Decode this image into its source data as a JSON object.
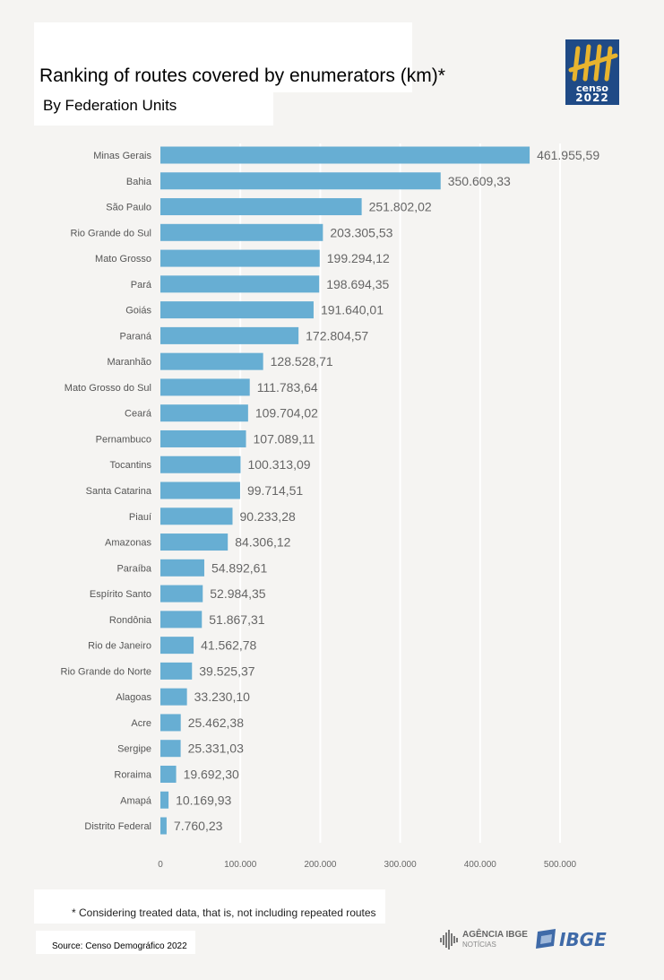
{
  "header": {
    "title": "Ranking of routes covered by enumerators (km)*",
    "subtitle": "By Federation Units"
  },
  "logo": {
    "word_top": "censo",
    "word_bottom": "2022",
    "bg_color": "#1f4a86",
    "mark_color": "#e8b42e"
  },
  "chart_data": {
    "type": "bar",
    "orientation": "horizontal",
    "categories": [
      "Minas Gerais",
      "Bahia",
      "São Paulo",
      "Rio Grande do Sul",
      "Mato Grosso",
      "Pará",
      "Goiás",
      "Paraná",
      "Maranhão",
      "Mato Grosso do Sul",
      "Ceará",
      "Pernambuco",
      "Tocantins",
      "Santa Catarina",
      "Piauí",
      "Amazonas",
      "Paraíba",
      "Espírito Santo",
      "Rondônia",
      "Rio de Janeiro",
      "Rio Grande do Norte",
      "Alagoas",
      "Acre",
      "Sergipe",
      "Roraima",
      "Amapá",
      "Distrito Federal"
    ],
    "values": [
      461955.59,
      350609.33,
      251802.02,
      203305.53,
      199294.12,
      198694.35,
      191640.01,
      172804.57,
      128528.71,
      111783.64,
      109704.02,
      107089.11,
      100313.09,
      99714.51,
      90233.28,
      84306.12,
      54892.61,
      52984.35,
      51867.31,
      41562.78,
      39525.37,
      33230.1,
      25462.38,
      25331.03,
      19692.3,
      10169.93,
      7760.23
    ],
    "value_labels": [
      "461.955,59",
      "350.609,33",
      "251.802,02",
      "203.305,53",
      "199.294,12",
      "198.694,35",
      "191.640,01",
      "172.804,57",
      "128.528,71",
      "111.783,64",
      "109.704,02",
      "107.089,11",
      "100.313,09",
      "99.714,51",
      "90.233,28",
      "84.306,12",
      "54.892,61",
      "52.984,35",
      "51.867,31",
      "41.562,78",
      "39.525,37",
      "33.230,10",
      "25.462,38",
      "25.331,03",
      "19.692,30",
      "10.169,93",
      "7.760,23"
    ],
    "xlim": [
      0,
      500000
    ],
    "xticks": [
      0,
      100000,
      200000,
      300000,
      400000,
      500000
    ],
    "xtick_labels": [
      "0",
      "100.000",
      "200.000",
      "300.000",
      "400.000",
      "500.000"
    ],
    "grid": true,
    "bar_color": "#67aed3"
  },
  "footer": {
    "footnote": "* Considering treated data, that is, not including repeated routes",
    "source": "Source: Censo Demográfico 2022",
    "agencia_name": "AGÊNCIA IBGE",
    "agencia_sub": "NOTÍCIAS",
    "ibge_word": "IBGE"
  }
}
